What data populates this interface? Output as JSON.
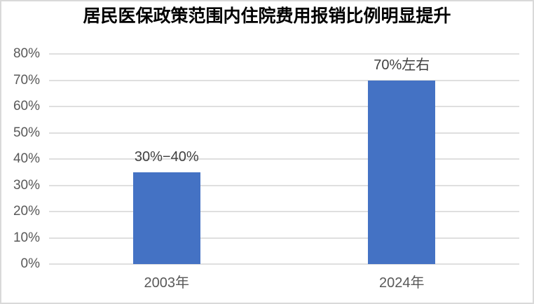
{
  "frame": {
    "background": "#ffffff",
    "border_color": "#d9d9d9"
  },
  "chart_data": {
    "type": "bar",
    "title": "居民医保政策范围内住院费用报销比例明显提升",
    "categories": [
      "2003年",
      "2024年"
    ],
    "values": [
      35,
      70
    ],
    "data_labels": [
      "30%−40%",
      "70%左右"
    ],
    "xlabel": "",
    "ylabel": "",
    "ylim": [
      0,
      80
    ],
    "ytick_step": 10,
    "ytick_suffix": "%",
    "grid": true,
    "legend": false,
    "bar_color": "#4472C4",
    "gridline_color": "#DFDFDF",
    "axis_text_color": "#595959",
    "data_label_color": "#404040",
    "title_color": "#000000"
  }
}
